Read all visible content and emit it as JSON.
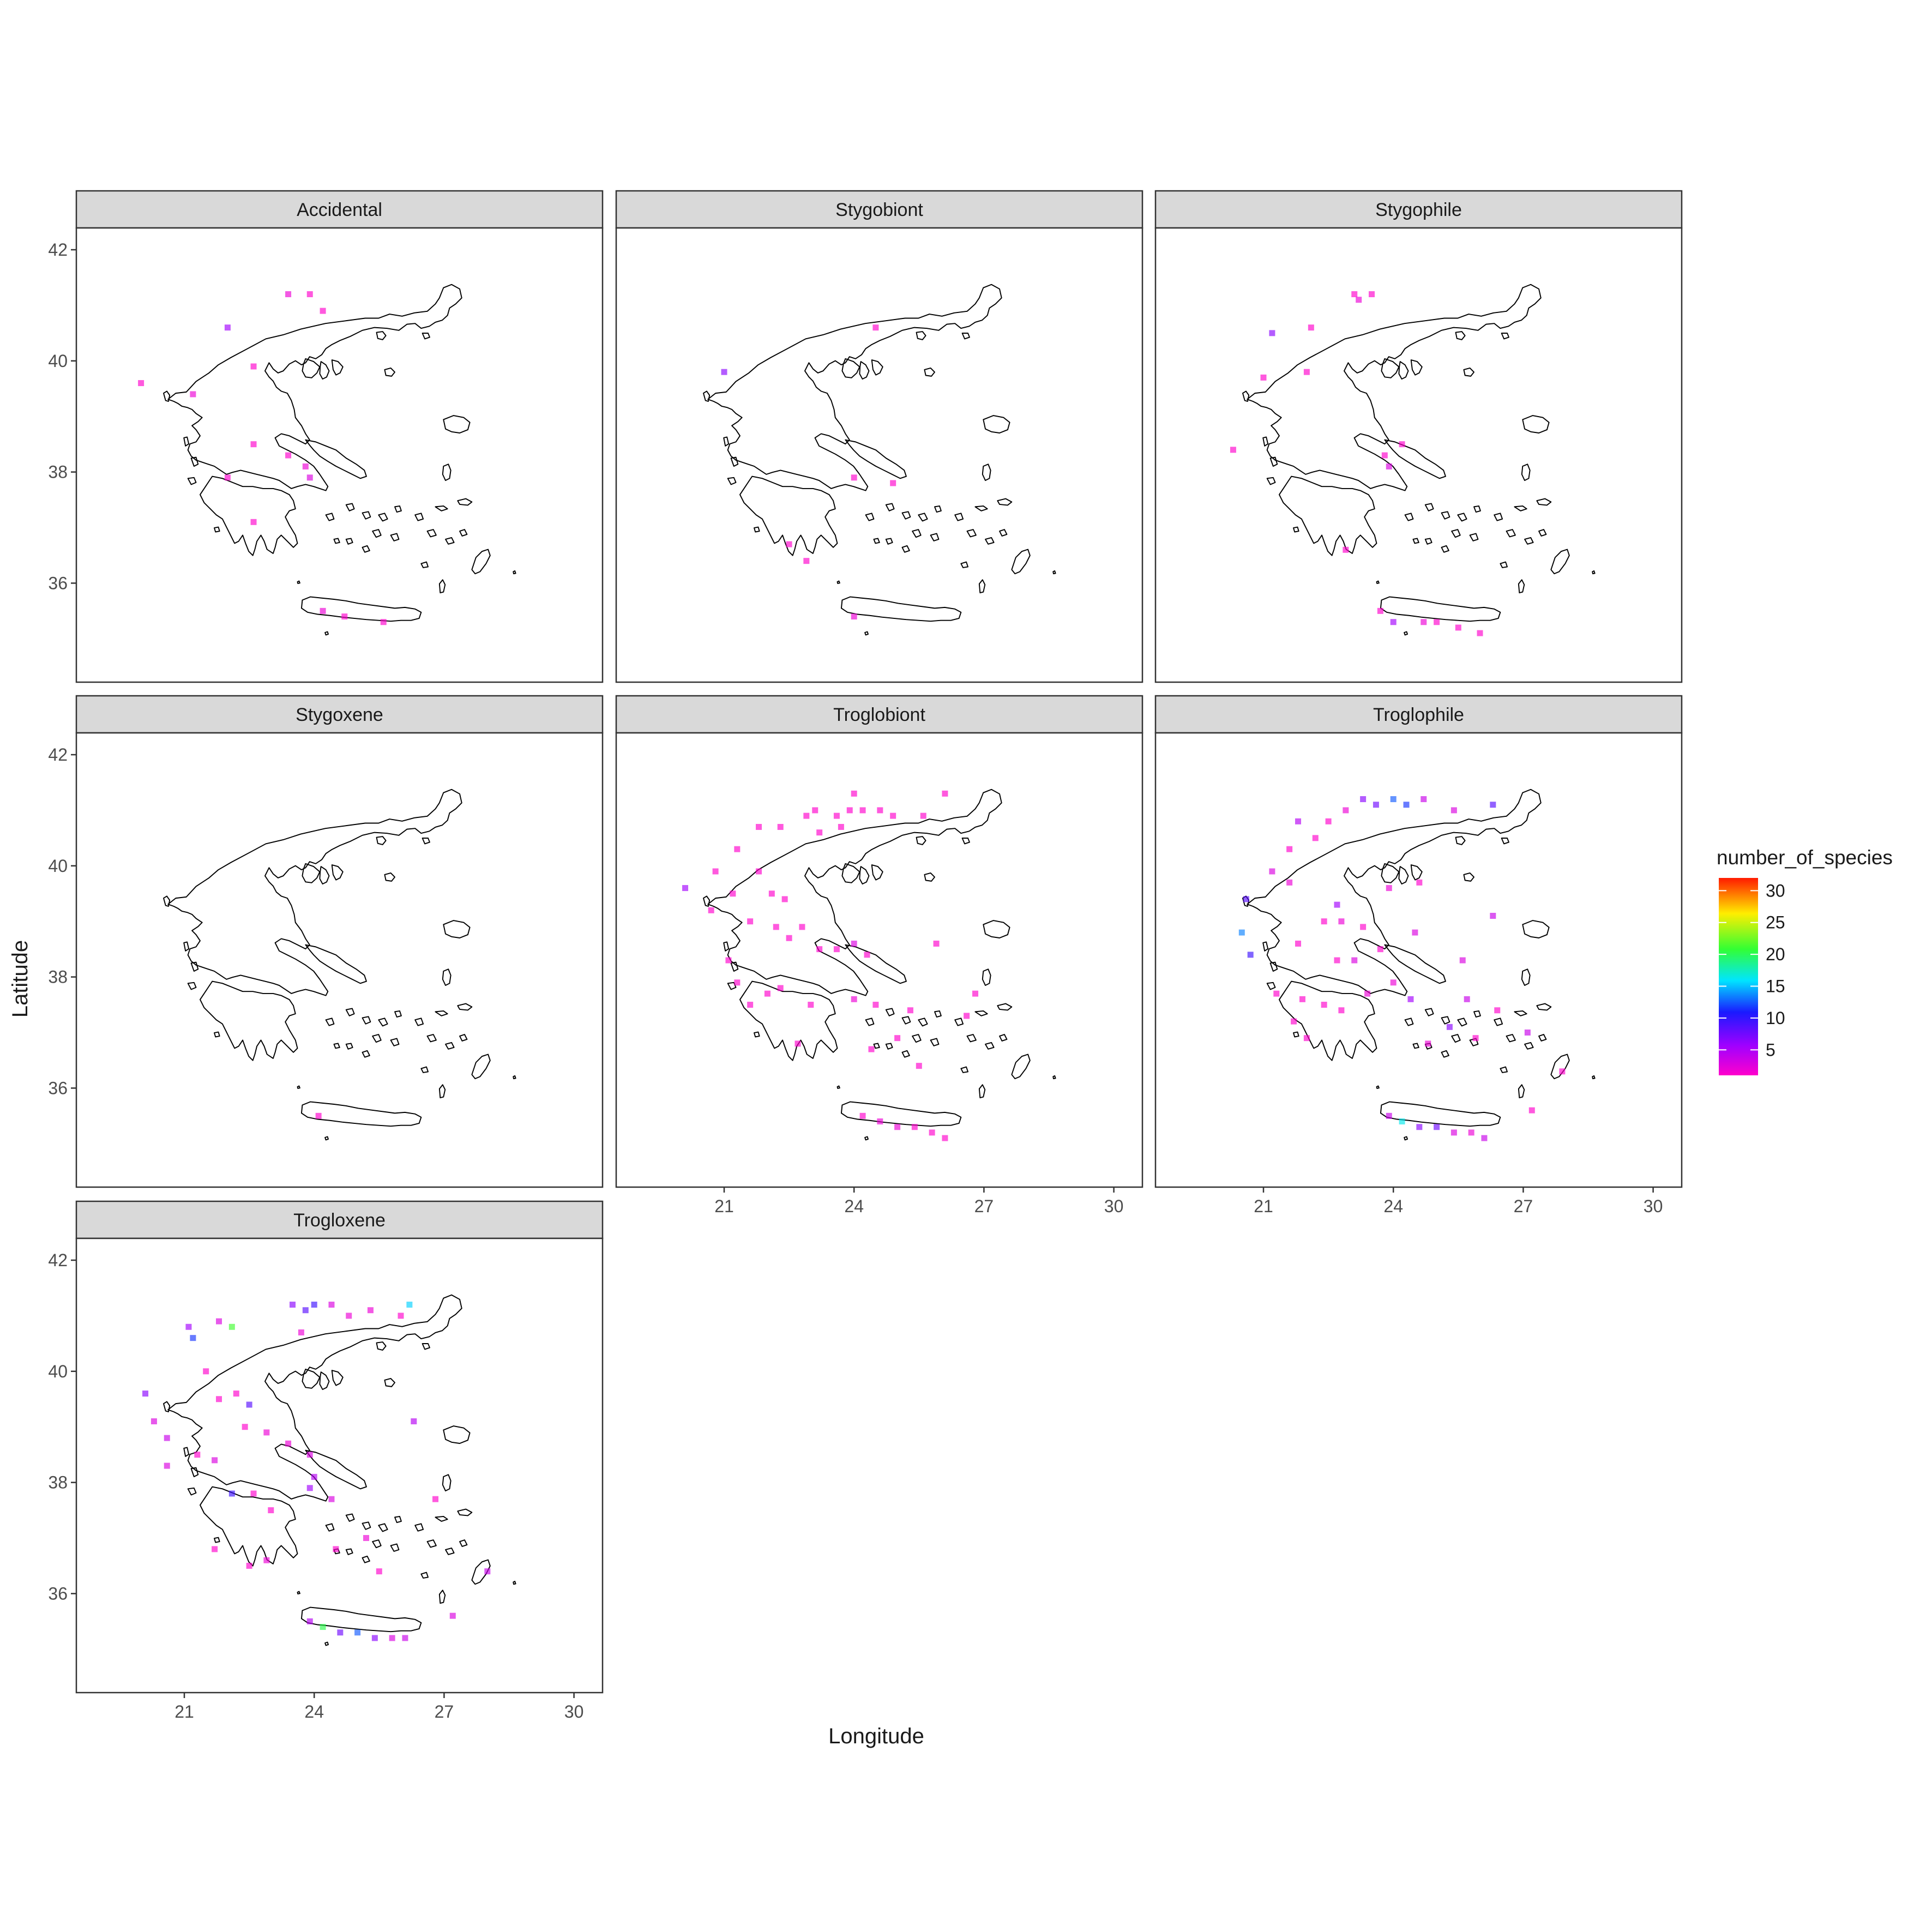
{
  "chart_data": {
    "type": "heatmap",
    "title": "",
    "xlabel": "Longitude",
    "ylabel": "Latitude",
    "xlim": [
      18.5,
      30.4
    ],
    "ylim": [
      34.5,
      42.4
    ],
    "x_ticks": [
      21,
      24,
      27,
      30
    ],
    "y_ticks": [
      36,
      38,
      40,
      42
    ],
    "legend": {
      "title": "number_of_species",
      "min": 1,
      "max": 32,
      "ticks": [
        5,
        10,
        15,
        20,
        25,
        30
      ],
      "colors": [
        "#ff00cc",
        "#a000ff",
        "#1a1aff",
        "#00e5ff",
        "#33ff33",
        "#ffee00",
        "#ff1a00"
      ],
      "placement": "right"
    },
    "panels": [
      {
        "name": "Accidental",
        "cells": [
          [
            23.4,
            41.2,
            2
          ],
          [
            23.9,
            41.2,
            1
          ],
          [
            24.2,
            40.9,
            1
          ],
          [
            22.0,
            40.6,
            6
          ],
          [
            20.0,
            39.6,
            1
          ],
          [
            21.2,
            39.4,
            2
          ],
          [
            22.6,
            39.9,
            1
          ],
          [
            22.6,
            38.5,
            1
          ],
          [
            23.4,
            38.3,
            1
          ],
          [
            23.8,
            38.1,
            2
          ],
          [
            23.9,
            37.9,
            3
          ],
          [
            22.0,
            37.9,
            1
          ],
          [
            22.6,
            37.1,
            1
          ],
          [
            24.2,
            35.5,
            2
          ],
          [
            24.7,
            35.4,
            1
          ],
          [
            25.6,
            35.3,
            1
          ]
        ]
      },
      {
        "name": "Stygobiont",
        "cells": [
          [
            24.5,
            40.6,
            1
          ],
          [
            21.0,
            39.8,
            7
          ],
          [
            24.0,
            37.9,
            1
          ],
          [
            24.9,
            37.8,
            1
          ],
          [
            22.5,
            36.7,
            1
          ],
          [
            22.9,
            36.4,
            1
          ],
          [
            24.0,
            35.4,
            2
          ]
        ]
      },
      {
        "name": "Stygophile",
        "cells": [
          [
            23.1,
            41.2,
            1
          ],
          [
            23.2,
            41.1,
            2
          ],
          [
            23.5,
            41.2,
            1
          ],
          [
            21.2,
            40.5,
            7
          ],
          [
            22.1,
            40.6,
            1
          ],
          [
            21.0,
            39.7,
            1
          ],
          [
            22.0,
            39.8,
            1
          ],
          [
            20.3,
            38.4,
            1
          ],
          [
            23.8,
            38.3,
            1
          ],
          [
            24.2,
            38.5,
            1
          ],
          [
            23.9,
            38.1,
            3
          ],
          [
            22.9,
            36.6,
            1
          ],
          [
            23.7,
            35.5,
            1
          ],
          [
            24.0,
            35.3,
            6
          ],
          [
            24.7,
            35.3,
            2
          ],
          [
            25.0,
            35.3,
            1
          ],
          [
            25.5,
            35.2,
            1
          ],
          [
            26.0,
            35.1,
            1
          ]
        ]
      },
      {
        "name": "Stygoxene",
        "cells": [
          [
            24.1,
            35.5,
            1
          ]
        ]
      },
      {
        "name": "Troglobiont",
        "cells": [
          [
            21.8,
            40.7,
            1
          ],
          [
            22.3,
            40.7,
            1
          ],
          [
            22.9,
            40.9,
            1
          ],
          [
            23.1,
            41.0,
            1
          ],
          [
            23.6,
            40.9,
            1
          ],
          [
            23.9,
            41.0,
            1
          ],
          [
            24.2,
            41.0,
            1
          ],
          [
            24.9,
            40.9,
            1
          ],
          [
            25.6,
            40.9,
            1
          ],
          [
            26.1,
            41.3,
            1
          ],
          [
            24.6,
            41.0,
            1
          ],
          [
            24.0,
            41.3,
            1
          ],
          [
            23.2,
            40.6,
            1
          ],
          [
            23.7,
            40.7,
            1
          ],
          [
            21.3,
            40.3,
            1
          ],
          [
            20.8,
            39.9,
            1
          ],
          [
            21.2,
            39.5,
            1
          ],
          [
            21.8,
            39.9,
            1
          ],
          [
            22.1,
            39.5,
            1
          ],
          [
            22.4,
            39.4,
            1
          ],
          [
            20.1,
            39.6,
            6
          ],
          [
            20.7,
            39.2,
            1
          ],
          [
            21.6,
            39.0,
            1
          ],
          [
            22.2,
            38.9,
            1
          ],
          [
            22.5,
            38.7,
            1
          ],
          [
            22.8,
            38.9,
            1
          ],
          [
            23.2,
            38.5,
            1
          ],
          [
            23.6,
            38.5,
            1
          ],
          [
            24.0,
            38.6,
            3
          ],
          [
            24.3,
            38.4,
            1
          ],
          [
            21.1,
            38.3,
            1
          ],
          [
            21.3,
            37.9,
            1
          ],
          [
            21.6,
            37.5,
            1
          ],
          [
            22.0,
            37.7,
            1
          ],
          [
            22.3,
            37.8,
            1
          ],
          [
            23.0,
            37.5,
            1
          ],
          [
            24.0,
            37.6,
            2
          ],
          [
            24.5,
            37.5,
            1
          ],
          [
            25.3,
            37.4,
            1
          ],
          [
            25.0,
            36.9,
            1
          ],
          [
            24.4,
            36.7,
            1
          ],
          [
            25.5,
            36.4,
            1
          ],
          [
            22.7,
            36.8,
            1
          ],
          [
            24.2,
            35.5,
            1
          ],
          [
            24.6,
            35.4,
            2
          ],
          [
            25.0,
            35.3,
            2
          ],
          [
            25.4,
            35.3,
            1
          ],
          [
            25.8,
            35.2,
            1
          ],
          [
            26.1,
            35.1,
            1
          ],
          [
            26.8,
            37.7,
            1
          ],
          [
            26.6,
            37.3,
            1
          ],
          [
            25.9,
            38.6,
            1
          ]
        ]
      },
      {
        "name": "Troglophile",
        "cells": [
          [
            23.3,
            41.2,
            7
          ],
          [
            23.6,
            41.1,
            8
          ],
          [
            24.0,
            41.2,
            13
          ],
          [
            24.3,
            41.1,
            12
          ],
          [
            24.7,
            41.2,
            4
          ],
          [
            25.4,
            41.0,
            3
          ],
          [
            26.3,
            41.1,
            9
          ],
          [
            22.9,
            41.0,
            2
          ],
          [
            21.8,
            40.8,
            5
          ],
          [
            21.6,
            40.3,
            1
          ],
          [
            22.2,
            40.5,
            1
          ],
          [
            22.5,
            40.8,
            1
          ],
          [
            21.2,
            39.9,
            3
          ],
          [
            21.6,
            39.7,
            2
          ],
          [
            22.7,
            39.3,
            6
          ],
          [
            22.4,
            39.0,
            1
          ],
          [
            22.8,
            39.0,
            2
          ],
          [
            23.3,
            38.9,
            1
          ],
          [
            23.7,
            38.5,
            1
          ],
          [
            23.1,
            38.3,
            3
          ],
          [
            22.7,
            38.3,
            1
          ],
          [
            21.8,
            38.6,
            1
          ],
          [
            20.6,
            39.4,
            9
          ],
          [
            20.5,
            38.8,
            14
          ],
          [
            20.7,
            38.4,
            10
          ],
          [
            21.3,
            37.7,
            1
          ],
          [
            21.9,
            37.6,
            1
          ],
          [
            21.7,
            37.2,
            1
          ],
          [
            22.0,
            36.9,
            1
          ],
          [
            22.4,
            37.5,
            1
          ],
          [
            22.8,
            37.4,
            1
          ],
          [
            24.0,
            37.9,
            2
          ],
          [
            24.4,
            37.6,
            6
          ],
          [
            25.3,
            37.1,
            7
          ],
          [
            25.7,
            37.6,
            4
          ],
          [
            26.4,
            37.4,
            1
          ],
          [
            27.1,
            37.0,
            4
          ],
          [
            23.9,
            35.5,
            4
          ],
          [
            24.2,
            35.4,
            17
          ],
          [
            24.6,
            35.3,
            7
          ],
          [
            25.0,
            35.3,
            8
          ],
          [
            25.4,
            35.2,
            3
          ],
          [
            25.8,
            35.2,
            2
          ],
          [
            26.1,
            35.1,
            4
          ],
          [
            27.9,
            36.3,
            1
          ],
          [
            27.2,
            35.6,
            1
          ],
          [
            26.3,
            39.1,
            4
          ],
          [
            25.6,
            38.3,
            3
          ],
          [
            24.6,
            39.7,
            1
          ],
          [
            23.9,
            39.6,
            2
          ],
          [
            24.5,
            38.8,
            3
          ],
          [
            23.4,
            37.7,
            2
          ],
          [
            24.8,
            36.8,
            2
          ],
          [
            25.9,
            36.9,
            1
          ]
        ]
      },
      {
        "name": "Trogloxene",
        "cells": [
          [
            20.1,
            39.6,
            7
          ],
          [
            21.1,
            40.8,
            6
          ],
          [
            21.2,
            40.6,
            12
          ],
          [
            21.8,
            40.9,
            3
          ],
          [
            22.1,
            40.8,
            22
          ],
          [
            23.5,
            41.2,
            7
          ],
          [
            23.8,
            41.1,
            9
          ],
          [
            24.0,
            41.2,
            10
          ],
          [
            24.4,
            41.2,
            3
          ],
          [
            24.8,
            41.0,
            2
          ],
          [
            25.3,
            41.1,
            2
          ],
          [
            26.0,
            41.0,
            1
          ],
          [
            26.2,
            41.2,
            16
          ],
          [
            23.7,
            40.7,
            2
          ],
          [
            21.5,
            40.0,
            1
          ],
          [
            21.8,
            39.5,
            1
          ],
          [
            22.2,
            39.6,
            1
          ],
          [
            22.5,
            39.4,
            9
          ],
          [
            22.4,
            39.0,
            1
          ],
          [
            22.9,
            38.9,
            2
          ],
          [
            23.4,
            38.7,
            2
          ],
          [
            23.9,
            38.5,
            3
          ],
          [
            20.3,
            39.1,
            3
          ],
          [
            20.6,
            38.8,
            4
          ],
          [
            20.6,
            38.3,
            3
          ],
          [
            21.3,
            38.5,
            1
          ],
          [
            21.7,
            38.4,
            3
          ],
          [
            22.1,
            37.8,
            10
          ],
          [
            22.6,
            37.8,
            1
          ],
          [
            23.0,
            37.5,
            1
          ],
          [
            23.9,
            37.9,
            6
          ],
          [
            24.4,
            37.7,
            3
          ],
          [
            24.0,
            38.1,
            5
          ],
          [
            21.7,
            36.8,
            1
          ],
          [
            22.5,
            36.5,
            1
          ],
          [
            22.9,
            36.6,
            2
          ],
          [
            23.9,
            35.5,
            5
          ],
          [
            24.2,
            35.4,
            21
          ],
          [
            24.6,
            35.3,
            8
          ],
          [
            25.0,
            35.3,
            13
          ],
          [
            25.4,
            35.2,
            7
          ],
          [
            25.8,
            35.2,
            3
          ],
          [
            26.1,
            35.2,
            4
          ],
          [
            26.3,
            39.1,
            5
          ],
          [
            26.8,
            37.7,
            1
          ],
          [
            28.0,
            36.4,
            4
          ],
          [
            27.2,
            35.6,
            3
          ],
          [
            25.2,
            37.0,
            2
          ],
          [
            25.5,
            36.4,
            1
          ],
          [
            24.5,
            36.8,
            1
          ]
        ]
      }
    ]
  }
}
